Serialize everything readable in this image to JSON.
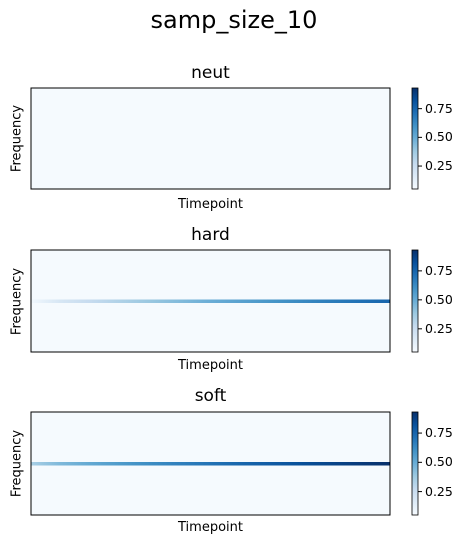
{
  "title": "samp_size_10",
  "chart_data": [
    {
      "type": "heatmap",
      "title": "neut",
      "xlabel": "Timepoint",
      "ylabel": "Frequency",
      "colormap": "Blues",
      "colorbar": {
        "range": [
          0.05,
          0.93
        ],
        "ticks": [
          "0.25",
          "0.50",
          "0.75"
        ],
        "tick_values": [
          0.25,
          0.5,
          0.75
        ]
      },
      "background_value": 0.06,
      "band": null
    },
    {
      "type": "heatmap",
      "title": "hard",
      "xlabel": "Timepoint",
      "ylabel": "Frequency",
      "colormap": "Blues",
      "colorbar": {
        "range": [
          0.05,
          0.93
        ],
        "ticks": [
          "0.25",
          "0.50",
          "0.75"
        ],
        "tick_values": [
          0.25,
          0.5,
          0.75
        ]
      },
      "background_value": 0.06,
      "band": {
        "frequency": 0.5,
        "value_start": 0.08,
        "value_end": 0.75
      }
    },
    {
      "type": "heatmap",
      "title": "soft",
      "xlabel": "Timepoint",
      "ylabel": "Frequency",
      "colormap": "Blues",
      "colorbar": {
        "range": [
          0.05,
          0.93
        ],
        "ticks": [
          "0.25",
          "0.50",
          "0.75"
        ],
        "tick_values": [
          0.25,
          0.5,
          0.75
        ]
      },
      "background_value": 0.06,
      "band": {
        "frequency": 0.5,
        "value_start": 0.35,
        "value_end": 0.93
      }
    }
  ]
}
